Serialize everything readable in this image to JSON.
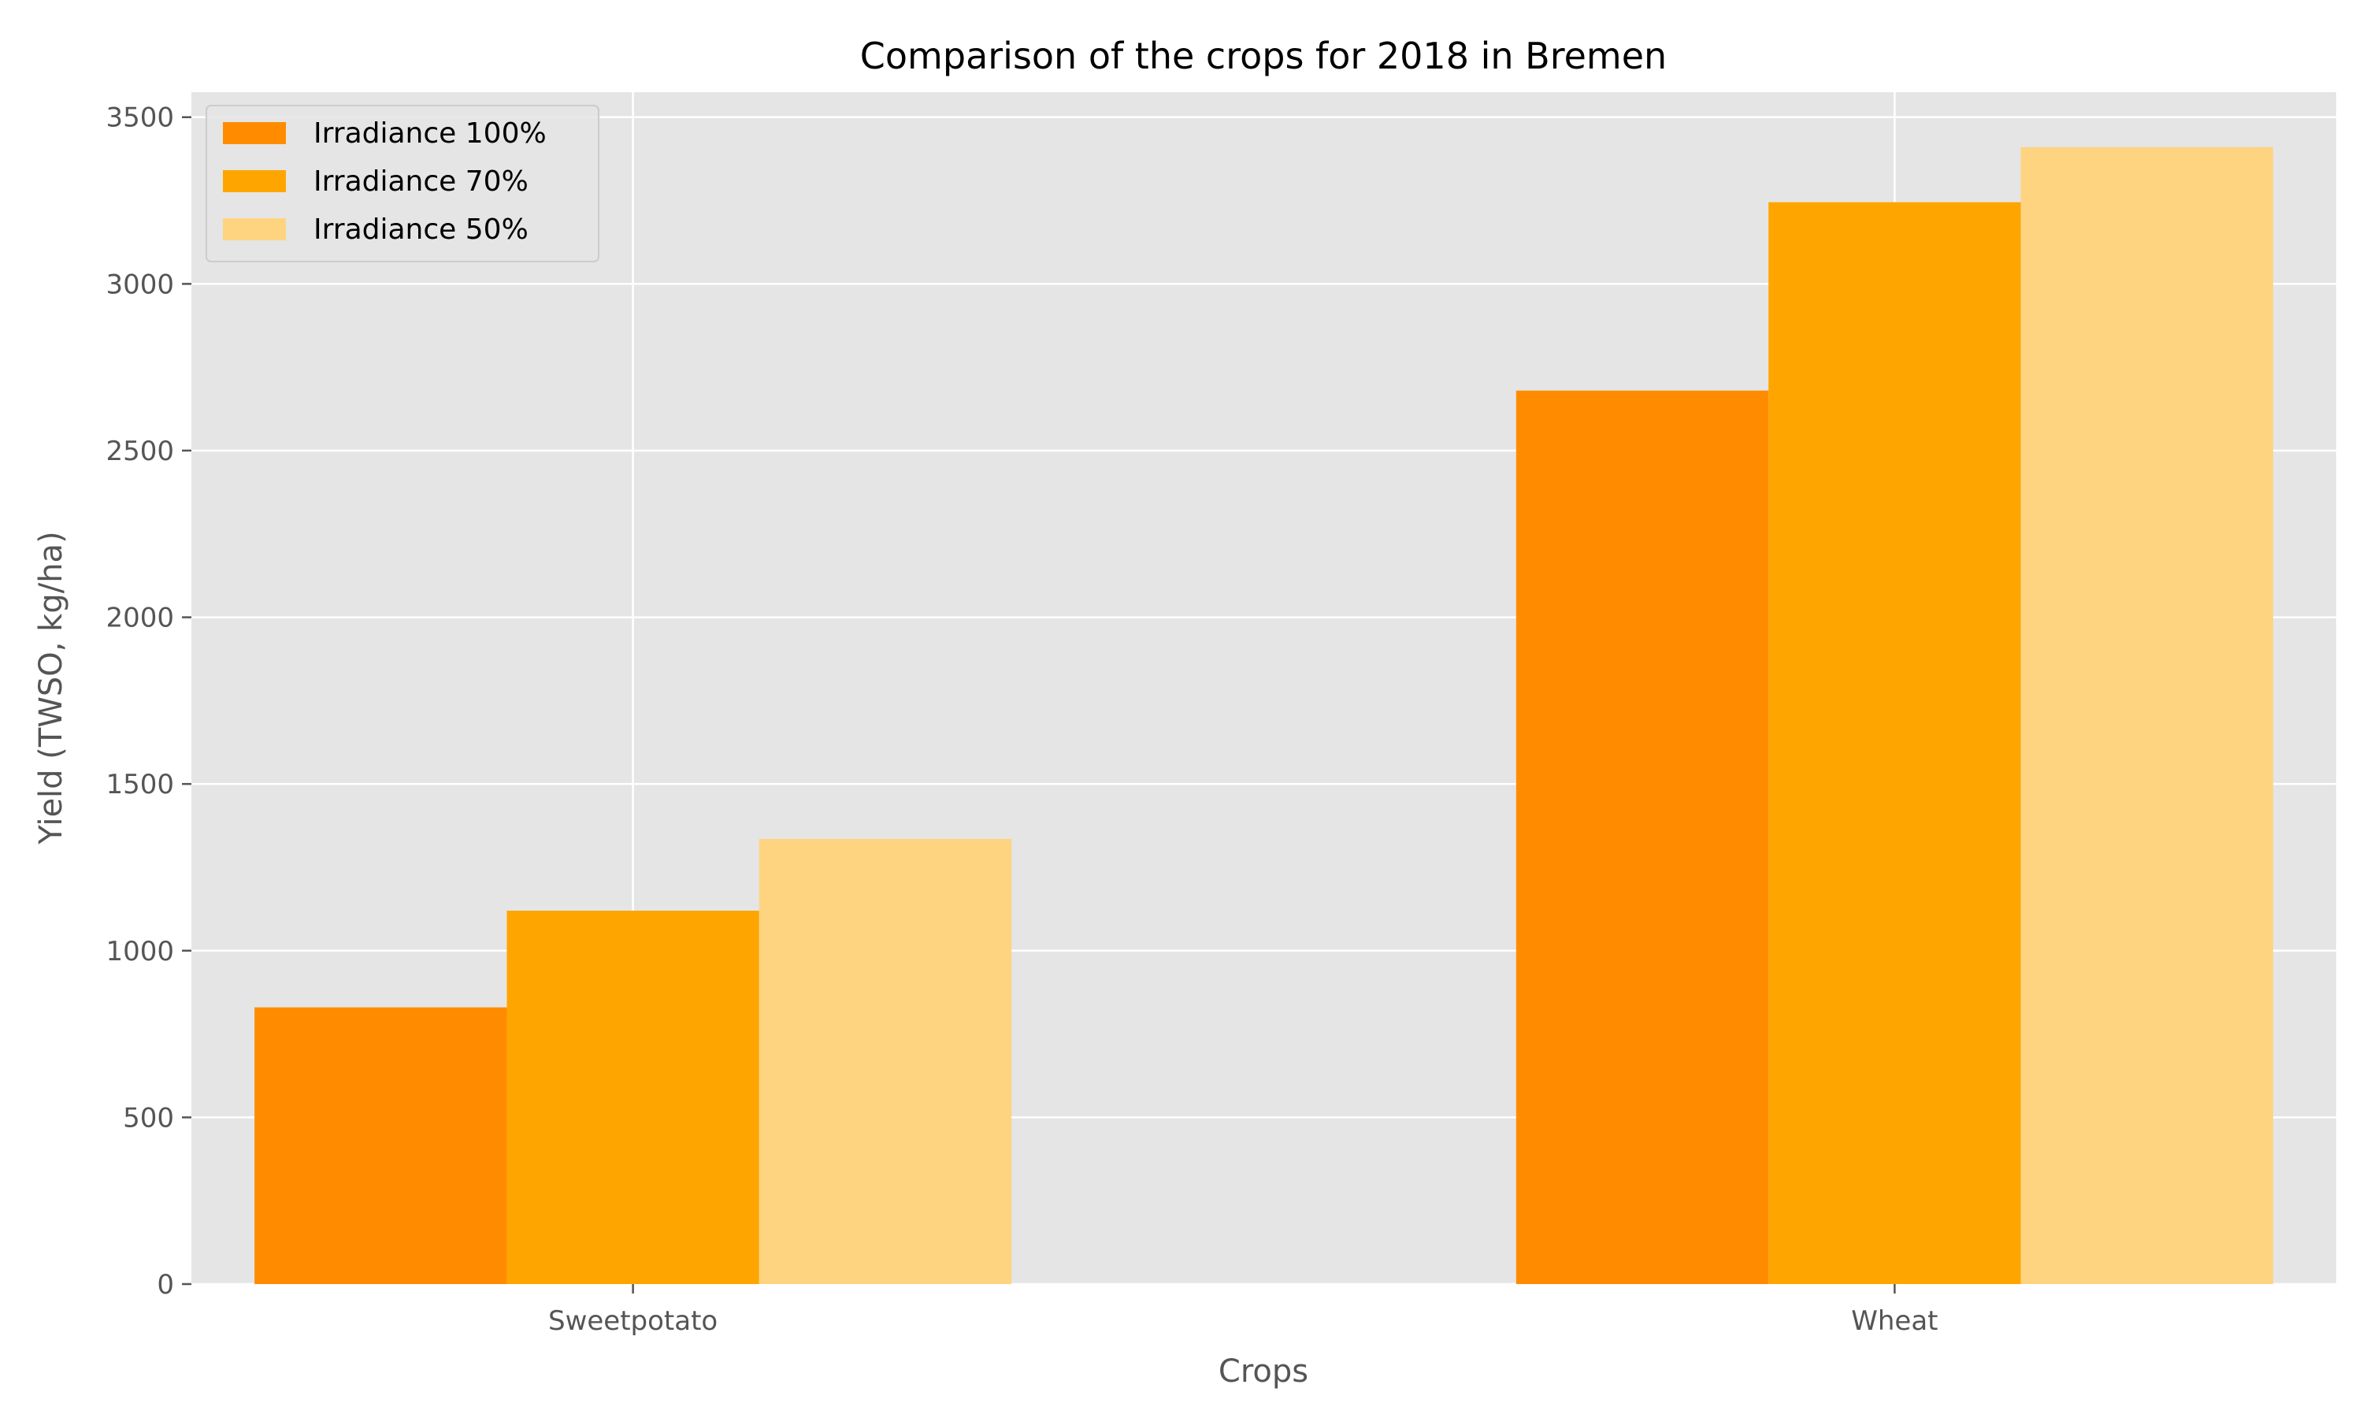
{
  "chart_data": {
    "type": "bar",
    "title": "Comparison of the crops for 2018 in Bremen",
    "xlabel": "Crops",
    "ylabel": "Yield (TWSO, kg/ha)",
    "categories": [
      "Sweetpotato",
      "Wheat"
    ],
    "series": [
      {
        "name": "Irradiance 100%",
        "values": [
          830,
          2680
        ],
        "color": "#FF8C00"
      },
      {
        "name": "Irradiance 70%",
        "values": [
          1120,
          3245
        ],
        "color": "#FFA500"
      },
      {
        "name": "Irradiance 50%",
        "values": [
          1335,
          3410
        ],
        "color": "#FED480"
      }
    ],
    "ylim": [
      0,
      3575
    ],
    "yticks": [
      0,
      500,
      1000,
      1500,
      2000,
      2500,
      3000,
      3500
    ],
    "grid": true,
    "legend": "top-left",
    "plot_background": "#E5E5E5",
    "grid_color": "#FFFFFF"
  }
}
